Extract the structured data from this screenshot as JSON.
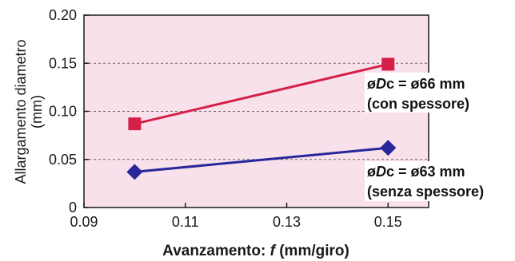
{
  "chart_data": {
    "type": "line",
    "xlabel": {
      "prefix": "Avanzamento: ",
      "var": "f",
      "suffix": " (mm/giro)"
    },
    "ylabel": [
      "Allargamento diametro",
      "(mm)"
    ],
    "x_ticks": [
      "0.09",
      "0.11",
      "0.13",
      "0.15"
    ],
    "y_ticks": [
      "0",
      "0.05",
      "0.10",
      "0.15",
      "0.20"
    ],
    "xlim": [
      0.09,
      0.158
    ],
    "ylim": [
      0,
      0.2
    ],
    "grid": "horizontal dashed",
    "colors": {
      "background": "#f9e1ec",
      "series1": "#d41f47",
      "series2": "#28279a",
      "grid": "#666666"
    },
    "series": [
      {
        "marker": "square",
        "x": [
          0.1,
          0.15
        ],
        "y": [
          0.087,
          0.149
        ],
        "label_line1": {
          "pre": "ø",
          "var": "D",
          "post": "c = ø66 mm"
        },
        "label_line2": "(con spessore)"
      },
      {
        "marker": "diamond",
        "x": [
          0.1,
          0.15
        ],
        "y": [
          0.037,
          0.062
        ],
        "label_line1": {
          "pre": "ø",
          "var": "D",
          "post": "c = ø63 mm"
        },
        "label_line2": "(senza spessore)"
      }
    ]
  }
}
